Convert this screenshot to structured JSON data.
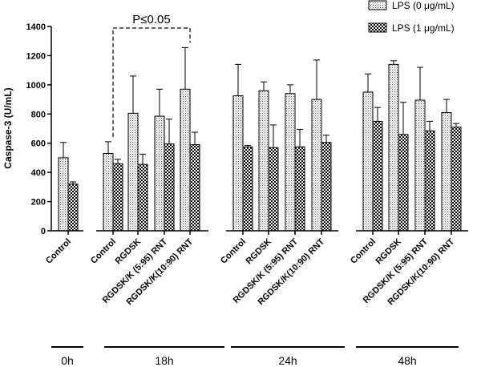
{
  "chart_data": {
    "type": "bar",
    "ylabel": "Caspase-3 (U/mL)",
    "ylim": [
      0,
      1400
    ],
    "yticks": [
      0,
      200,
      400,
      600,
      800,
      1000,
      1200,
      1400
    ],
    "grid": false,
    "legend_position": "top-right",
    "series": [
      {
        "name": "LPS (0 μg/mL)",
        "pattern": "dots"
      },
      {
        "name": "LPS (1 μg/mL)",
        "pattern": "checker"
      }
    ],
    "groups": [
      {
        "label": "0h",
        "categories": [
          {
            "label": "Control",
            "values": [
              500,
              320
            ],
            "errors": [
              105,
              15
            ]
          }
        ]
      },
      {
        "label": "18h",
        "categories": [
          {
            "label": "Control",
            "values": [
              530,
              460
            ],
            "errors": [
              80,
              30
            ]
          },
          {
            "label": "RGDSK",
            "values": [
              805,
              455
            ],
            "errors": [
              255,
              70
            ]
          },
          {
            "label": "RGDSK/K (5:95) RNT",
            "values": [
              785,
              595
            ],
            "errors": [
              185,
              170
            ]
          },
          {
            "label": "RGDSK/K(10:90) RNT",
            "values": [
              970,
              590
            ],
            "errors": [
              285,
              85
            ]
          }
        ]
      },
      {
        "label": "24h",
        "categories": [
          {
            "label": "Control",
            "values": [
              925,
              575
            ],
            "errors": [
              215,
              10
            ]
          },
          {
            "label": "RGDSK",
            "values": [
              960,
              570
            ],
            "errors": [
              60,
              155
            ]
          },
          {
            "label": "RGDSK/K (5:95) RNT",
            "values": [
              940,
              575
            ],
            "errors": [
              60,
              120
            ]
          },
          {
            "label": "RGDSK/K(10:90) RNT",
            "values": [
              900,
              605
            ],
            "errors": [
              270,
              50
            ]
          }
        ]
      },
      {
        "label": "48h",
        "categories": [
          {
            "label": "Control",
            "values": [
              950,
              750
            ],
            "errors": [
              125,
              95
            ]
          },
          {
            "label": "RGDSK",
            "values": [
              1140,
              660
            ],
            "errors": [
              25,
              220
            ]
          },
          {
            "label": "RGDSK/K (5:95) RNT",
            "values": [
              895,
              685
            ],
            "errors": [
              225,
              65
            ]
          },
          {
            "label": "RGDSK/K(10:90) RNT",
            "values": [
              810,
              710
            ],
            "errors": [
              90,
              25
            ]
          }
        ]
      }
    ],
    "annotation": {
      "text": "P≤0.05",
      "from": {
        "group": 1,
        "category": 0
      },
      "to": {
        "group": 1,
        "category": 3
      }
    }
  }
}
